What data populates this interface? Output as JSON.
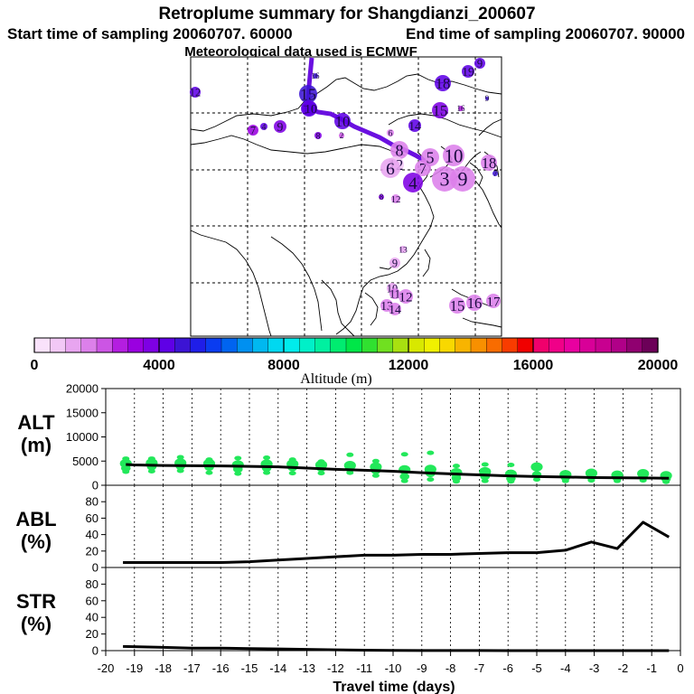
{
  "title": "Retroplume summary for Shangdianzi_200607",
  "start_label": "Start time of sampling 20060707. 60000",
  "end_label": "End time of sampling 20060707. 90000",
  "met_label": "Meteorological data used is ECMWF",
  "colorbar": {
    "label": "Altitude (m)",
    "ticks": [
      "0",
      "4000",
      "8000",
      "12000",
      "16000",
      "20000"
    ],
    "range": [
      0,
      20000
    ],
    "colors": [
      "#f9e2fb",
      "#f2c8f6",
      "#e8a5f0",
      "#dc80ea",
      "#cc55e4",
      "#b41ee0",
      "#9a00e0",
      "#7e00e4",
      "#5f00e6",
      "#3c14d4",
      "#1f1ee8",
      "#0a3cf0",
      "#0064f0",
      "#0090f0",
      "#00b8f0",
      "#00d8f0",
      "#00ecec",
      "#00f0c8",
      "#00f0a0",
      "#00ec70",
      "#00e648",
      "#30e030",
      "#70e020",
      "#a8e010",
      "#d8e800",
      "#f0f000",
      "#f8d800",
      "#f8b400",
      "#f89000",
      "#f86c00",
      "#f83c00",
      "#f00000",
      "#f0006c",
      "#f00088",
      "#e800a0",
      "#d80098",
      "#c80090",
      "#b00088",
      "#900070",
      "#6c0058"
    ]
  },
  "map_markers": [
    {
      "label": "16",
      "alt": 4500
    },
    {
      "label": "15",
      "alt": 4500
    },
    {
      "label": "13",
      "alt": 4300
    },
    {
      "label": "10",
      "alt": 4200
    },
    {
      "label": "18",
      "alt": 4300
    },
    {
      "label": "19",
      "alt": 4300
    },
    {
      "label": "9",
      "alt": 4300
    },
    {
      "label": "12",
      "alt": 4200
    },
    {
      "label": "15",
      "alt": 3800
    },
    {
      "label": "14",
      "alt": 4100
    },
    {
      "label": "11",
      "alt": 4200
    },
    {
      "label": "10",
      "alt": 4000
    },
    {
      "label": "9",
      "alt": 3700
    },
    {
      "label": "4",
      "alt": 4000
    },
    {
      "label": "7",
      "alt": 3200
    },
    {
      "label": "8",
      "alt": 3500
    },
    {
      "label": "2",
      "alt": 2000
    },
    {
      "label": "6",
      "alt": 1500
    },
    {
      "label": "8",
      "alt": 1500
    },
    {
      "label": "10",
      "alt": 1800
    },
    {
      "label": "3",
      "alt": 1500
    },
    {
      "label": "7",
      "alt": 1500
    },
    {
      "label": "5",
      "alt": 1500
    },
    {
      "label": "9",
      "alt": 1500
    },
    {
      "label": "12",
      "alt": 800
    },
    {
      "label": "6",
      "alt": 1000
    },
    {
      "label": "4",
      "alt": 3600
    },
    {
      "label": "8",
      "alt": 3800
    },
    {
      "label": "12",
      "alt": 1500
    },
    {
      "label": "13",
      "alt": 1200
    },
    {
      "label": "9",
      "alt": 1200
    },
    {
      "label": "10",
      "alt": 1300
    },
    {
      "label": "11",
      "alt": 1500
    },
    {
      "label": "12",
      "alt": 1500
    },
    {
      "label": "13",
      "alt": 1500
    },
    {
      "label": "14",
      "alt": 1600
    },
    {
      "label": "15",
      "alt": 1600
    },
    {
      "label": "16",
      "alt": 1600
    },
    {
      "label": "17",
      "alt": 1500
    },
    {
      "label": "18",
      "alt": 1900
    },
    {
      "label": "16",
      "alt": 2500
    },
    {
      "label": "9",
      "alt": 4800
    },
    {
      "label": "7",
      "alt": 4600
    }
  ],
  "chart_data": [
    {
      "type": "line",
      "title": "ALT (m)",
      "panel_label": [
        "ALT",
        "(m)"
      ],
      "xlabel": "Travel time (days)",
      "ylabel": "ALT (m)",
      "xlim": [
        -20,
        0
      ],
      "ylim": [
        0,
        20000
      ],
      "yticks": [
        0,
        5000,
        10000,
        15000,
        20000
      ],
      "x": [
        -19.3,
        -19,
        -18,
        -17,
        -16,
        -15,
        -14,
        -13,
        -12,
        -11,
        -10,
        -9,
        -8,
        -7,
        -6,
        -5,
        -4,
        -3,
        -2,
        -1,
        -0.4
      ],
      "series": [
        {
          "name": "median altitude",
          "values": [
            4300,
            4200,
            4100,
            4050,
            4000,
            3900,
            3800,
            3550,
            3300,
            3100,
            2900,
            2600,
            2350,
            2150,
            1950,
            1800,
            1700,
            1600,
            1550,
            1500,
            1450
          ]
        }
      ],
      "scatter_spread": [
        {
          "x": -19.3,
          "values": [
            2800,
            3500,
            4500,
            5500
          ]
        },
        {
          "x": -18.4,
          "values": [
            2900,
            3800,
            4600,
            5500
          ]
        },
        {
          "x": -17.4,
          "values": [
            3000,
            3900,
            4600,
            5800
          ]
        },
        {
          "x": -16.4,
          "values": [
            2600,
            3700,
            4500,
            5300
          ]
        },
        {
          "x": -15.4,
          "values": [
            2400,
            3300,
            4200,
            5600
          ]
        },
        {
          "x": -14.4,
          "values": [
            2600,
            3500,
            4400,
            5700
          ]
        },
        {
          "x": -13.5,
          "values": [
            2500,
            3600,
            4400,
            5300
          ]
        },
        {
          "x": -12.5,
          "values": [
            2500,
            3500,
            4200,
            4900
          ]
        },
        {
          "x": -11.5,
          "values": [
            2600,
            3400,
            4100,
            6300
          ]
        },
        {
          "x": -10.6,
          "values": [
            2000,
            3000,
            3800,
            5000
          ]
        },
        {
          "x": -9.6,
          "values": [
            900,
            1800,
            3200,
            6400
          ]
        },
        {
          "x": -8.7,
          "values": [
            1200,
            2400,
            3300,
            6700
          ]
        },
        {
          "x": -7.8,
          "values": [
            800,
            1500,
            2600,
            4000
          ]
        },
        {
          "x": -6.8,
          "values": [
            900,
            1800,
            2800,
            4300
          ]
        },
        {
          "x": -5.9,
          "values": [
            800,
            1400,
            2300,
            4200
          ]
        },
        {
          "x": -5,
          "values": [
            1200,
            2200,
            3800
          ]
        },
        {
          "x": -4,
          "values": [
            900,
            1600,
            2200
          ]
        },
        {
          "x": -3.1,
          "values": [
            1000,
            1700,
            2500
          ]
        },
        {
          "x": -2.2,
          "values": [
            900,
            1500,
            2100
          ]
        },
        {
          "x": -1.3,
          "values": [
            1000,
            1700,
            2400
          ]
        },
        {
          "x": -0.5,
          "values": [
            700,
            1300,
            2000
          ]
        }
      ]
    },
    {
      "type": "line",
      "title": "ABL (%)",
      "panel_label": [
        "ABL",
        "(%)"
      ],
      "xlim": [
        -20,
        0
      ],
      "ylim": [
        0,
        100
      ],
      "yticks": [
        0,
        20,
        40,
        60,
        80
      ],
      "x": [
        -19.4,
        -18,
        -17,
        -16,
        -15,
        -14,
        -13,
        -12,
        -11,
        -10,
        -9,
        -8,
        -7,
        -6,
        -5,
        -4,
        -3.1,
        -2.2,
        -1.3,
        -0.4
      ],
      "series": [
        {
          "name": "ABL fraction",
          "values": [
            6,
            6,
            6,
            6,
            7,
            9,
            11,
            13,
            15,
            15,
            16,
            16,
            17,
            18,
            18,
            21,
            31,
            23,
            55,
            37
          ]
        }
      ]
    },
    {
      "type": "line",
      "title": "STR (%)",
      "panel_label": [
        "STR",
        "(%)"
      ],
      "xlim": [
        -20,
        0
      ],
      "ylim": [
        0,
        100
      ],
      "yticks": [
        0,
        20,
        40,
        60,
        80
      ],
      "x": [
        -19.4,
        -18,
        -17,
        -16,
        -15,
        -14,
        -13,
        -12,
        -11,
        -10,
        -9,
        -8,
        -7,
        -6,
        -5,
        -4,
        -3,
        -2,
        -1,
        -0.4
      ],
      "series": [
        {
          "name": "stratospheric fraction",
          "values": [
            5,
            4,
            3,
            3,
            2.5,
            2,
            1.5,
            1,
            0.5,
            0.3,
            0.2,
            0.1,
            0.1,
            0,
            0,
            0,
            0,
            0,
            0,
            0
          ]
        }
      ]
    }
  ],
  "x_ticks": [
    "-20",
    "-19",
    "-18",
    "-17",
    "-16",
    "-15",
    "-14",
    "-13",
    "-12",
    "-11",
    "-10",
    "-9",
    "-8",
    "-7",
    "-6",
    "-5",
    "-4",
    "-3",
    "-2",
    "-1",
    "0"
  ],
  "x_axis_label": "Travel time (days)"
}
